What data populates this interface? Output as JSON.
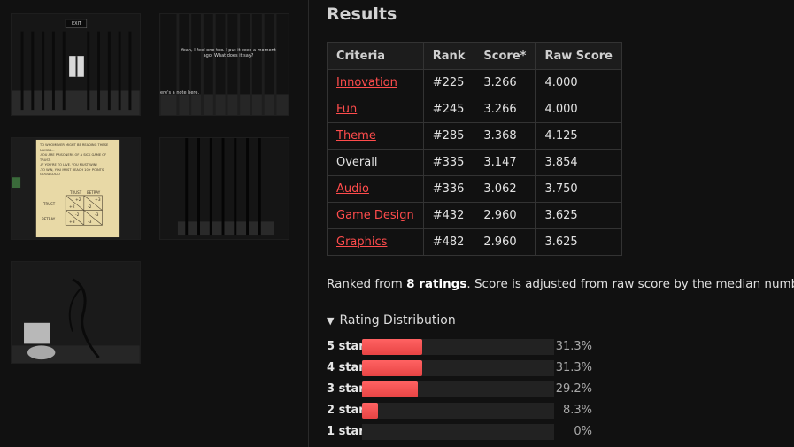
{
  "results": {
    "title": "Results",
    "columns": [
      "Criteria",
      "Rank",
      "Score*",
      "Raw Score"
    ],
    "rows": [
      {
        "criteria": "Innovation",
        "rank": "#225",
        "score": "3.266",
        "raw": "4.000",
        "link": true
      },
      {
        "criteria": "Fun",
        "rank": "#245",
        "score": "3.266",
        "raw": "4.000",
        "link": true
      },
      {
        "criteria": "Theme",
        "rank": "#285",
        "score": "3.368",
        "raw": "4.125",
        "link": true
      },
      {
        "criteria": "Overall",
        "rank": "#335",
        "score": "3.147",
        "raw": "3.854",
        "link": false
      },
      {
        "criteria": "Audio",
        "rank": "#336",
        "score": "3.062",
        "raw": "3.750",
        "link": true
      },
      {
        "criteria": "Game Design",
        "rank": "#432",
        "score": "2.960",
        "raw": "3.625",
        "link": true
      },
      {
        "criteria": "Graphics",
        "rank": "#482",
        "score": "2.960",
        "raw": "3.625",
        "link": true
      }
    ],
    "ranked_prefix": "Ranked from ",
    "ranked_count": "8 ratings",
    "ranked_suffix": ". Score is adjusted from raw score by the median numb"
  },
  "distribution": {
    "toggle_label": "Rating Distribution",
    "rows": [
      {
        "label": "5 star",
        "percent_text": "31.3%",
        "fraction": 0.313
      },
      {
        "label": "4 star",
        "percent_text": "31.3%",
        "fraction": 0.313
      },
      {
        "label": "3 star",
        "percent_text": "29.2%",
        "fraction": 0.292
      },
      {
        "label": "2 star",
        "percent_text": "8.3%",
        "fraction": 0.083
      },
      {
        "label": "1 star",
        "percent_text": "0%",
        "fraction": 0
      }
    ]
  },
  "screenshots": {
    "thumb1_exit": "EXIT",
    "thumb2_dialog": "Yeah, I feel one too. I put it reed a moment ago. What does it say?",
    "thumb2_caption": "ere's a note here.",
    "note_lines": [
      "TO WHOMEVER MIGHT BE READING THESE NUMBS...",
      "-YOU ARE PRISONERS OF A SICK GAME OF TRUST.",
      "-IF YOU'RE TO LIVE, YOU MUST WIN!",
      "-TO WIN, YOU MUST REACH 10+ POINTS.",
      "GOOD LUCK!"
    ],
    "note_matrix": {
      "col_trust": "TRUST",
      "col_betray": "BETRAY",
      "row_trust": "TRUST",
      "row_betray": "BETRAY",
      "cells": [
        "+2",
        "+2",
        "+3",
        "-2",
        "-2",
        "+3",
        "-3",
        "-3"
      ]
    }
  },
  "colors": {
    "background": "#111111",
    "link": "#ff4c4c",
    "bar": "#ff5555",
    "track": "#222222"
  }
}
